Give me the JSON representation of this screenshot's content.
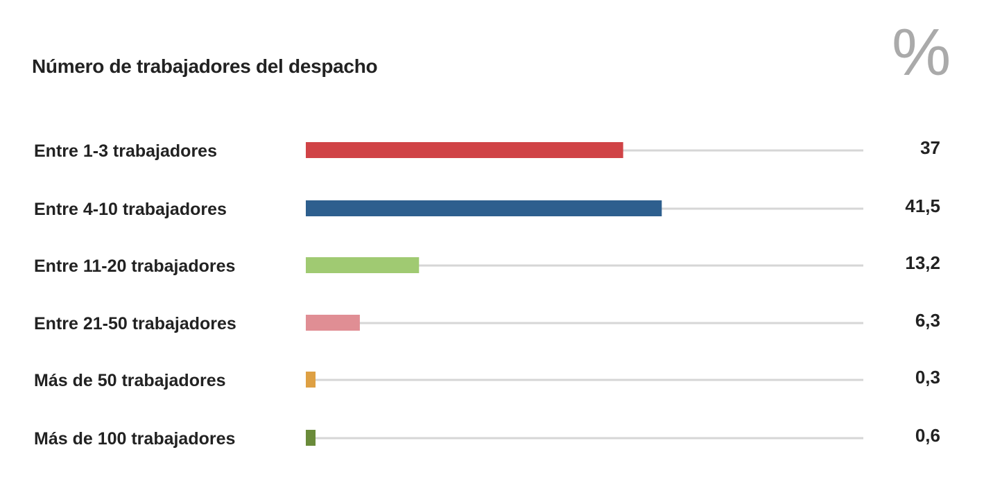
{
  "chart_data": {
    "type": "bar",
    "orientation": "horizontal",
    "title": "Número de trabajadores del despacho",
    "unit_label": "%",
    "xlim": [
      0,
      65
    ],
    "categories": [
      "Entre 1-3 trabajadores",
      "Entre 4-10 trabajadores",
      "Entre 11-20 trabajadores",
      "Entre 21-50 trabajadores",
      "Más de 50 trabajadores",
      "Más de 100 trabajadores"
    ],
    "values": [
      37,
      41.5,
      13.2,
      6.3,
      0.3,
      0.6
    ],
    "value_labels": [
      "37",
      "41,5",
      "13,2",
      "6,3",
      "0,3",
      "0,6"
    ],
    "colors": [
      "#d04346",
      "#2e5f8e",
      "#a0ca72",
      "#e08e94",
      "#dea043",
      "#6a8b3a"
    ],
    "track_color": "#d6d6d6"
  }
}
